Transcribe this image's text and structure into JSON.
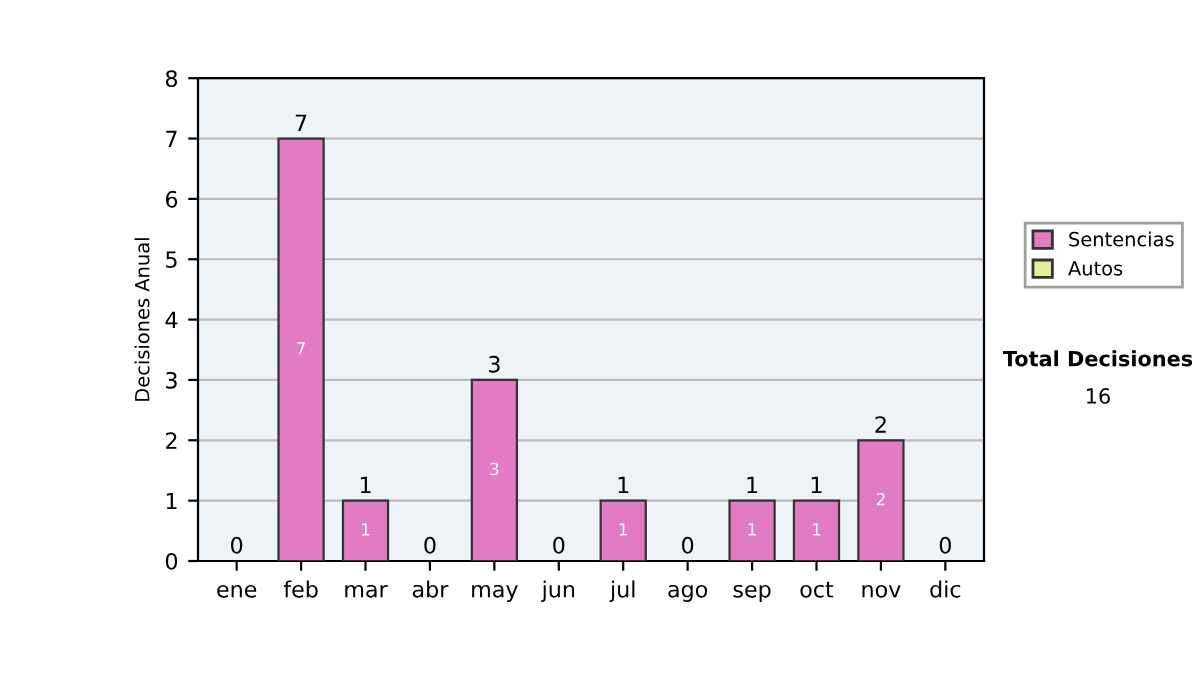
{
  "chart_data": {
    "type": "bar",
    "stacked": true,
    "ylabel": "Decisiones Anual",
    "categories": [
      "ene",
      "feb",
      "mar",
      "abr",
      "may",
      "jun",
      "jul",
      "ago",
      "sep",
      "oct",
      "nov",
      "dic"
    ],
    "series": [
      {
        "name": "Sentencias",
        "color": "#e07bc4",
        "values": [
          0,
          7,
          1,
          0,
          3,
          0,
          1,
          0,
          1,
          1,
          2,
          0
        ],
        "value_labels": [
          null,
          "7",
          "1",
          null,
          "3",
          null,
          "1",
          null,
          "1",
          "1",
          "2",
          null
        ]
      },
      {
        "name": "Autos",
        "color": "#e6ec9c",
        "values": [
          0,
          0,
          0,
          0,
          0,
          0,
          0,
          0,
          0,
          0,
          0,
          0
        ]
      }
    ],
    "totals": [
      "0",
      "7",
      "1",
      "0",
      "3",
      "0",
      "1",
      "0",
      "1",
      "1",
      "2",
      "0"
    ],
    "ylim": [
      0,
      8
    ],
    "yticks": [
      0,
      1,
      2,
      3,
      4,
      5,
      6,
      7,
      8
    ],
    "grid": "y",
    "legend": "right",
    "annotations": [
      "Total Decisiones",
      "16"
    ]
  }
}
